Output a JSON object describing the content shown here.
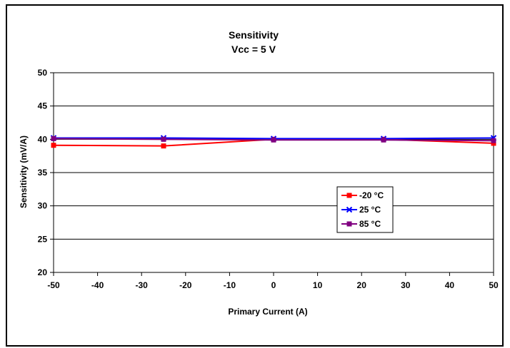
{
  "chart_data": {
    "type": "line",
    "title": "Sensitivity",
    "subtitle": "Vcc = 5 V",
    "xlabel": "Primary Current (A)",
    "ylabel": "Sensitivity (mV/A)",
    "xlim": [
      -50,
      50
    ],
    "ylim": [
      20,
      50
    ],
    "xticks": [
      -50,
      -40,
      -30,
      -20,
      -10,
      0,
      10,
      20,
      30,
      40,
      50
    ],
    "yticks": [
      20,
      25,
      30,
      35,
      40,
      45,
      50
    ],
    "grid": "horizontal",
    "legend_position": "right",
    "series": [
      {
        "name": "-20 °C",
        "color": "#ff0000",
        "marker": "square",
        "x": [
          -50,
          -25,
          0,
          25,
          50
        ],
        "y": [
          39.1,
          39.0,
          40.0,
          40.0,
          39.4
        ]
      },
      {
        "name": "25 °C",
        "color": "#0000ff",
        "marker": "x",
        "x": [
          -50,
          -25,
          0,
          25,
          50
        ],
        "y": [
          40.2,
          40.2,
          40.1,
          40.1,
          40.2
        ]
      },
      {
        "name": "85 °C",
        "color": "#800080",
        "marker": "square",
        "x": [
          -50,
          -25,
          0,
          25,
          50
        ],
        "y": [
          40.1,
          40.0,
          39.9,
          39.9,
          39.8
        ]
      }
    ]
  }
}
